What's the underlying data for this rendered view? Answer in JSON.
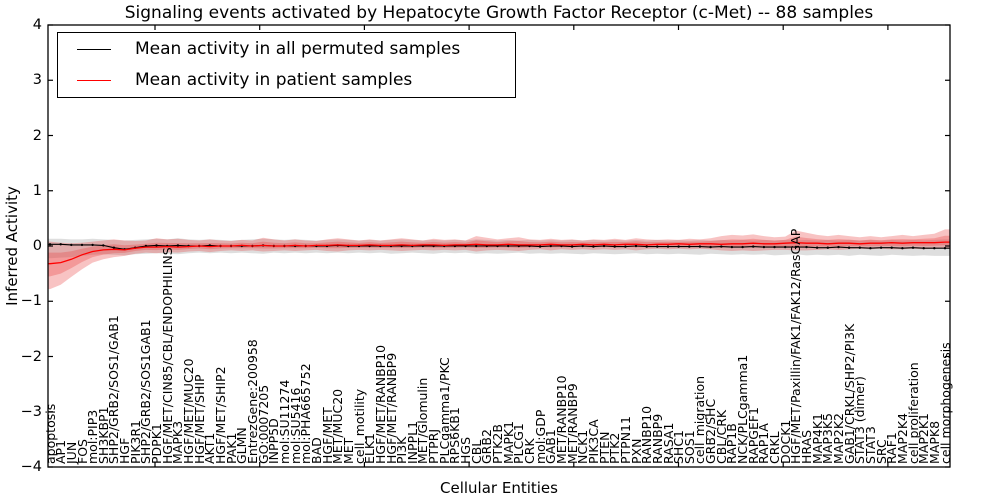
{
  "title": "Signaling events activated by Hepatocyte Growth Factor Receptor (c-Met) -- 88 samples",
  "legend": {
    "items": [
      {
        "label": "Mean activity in all permuted samples",
        "color": "#000000"
      },
      {
        "label": "Mean activity in patient samples",
        "color": "#ff0000"
      }
    ]
  },
  "axes": {
    "ylabel": "Inferred Activity",
    "xlabel": "Cellular Entities",
    "yticks": [
      "4",
      "3",
      "2",
      "1",
      "0",
      "−1",
      "−2",
      "−3",
      "−4"
    ],
    "ytick_values": [
      4,
      3,
      2,
      1,
      0,
      -1,
      -2,
      -3,
      -4
    ]
  },
  "chart_data": {
    "type": "line",
    "title": "Signaling events activated by Hepatocyte Growth Factor Receptor (c-Met) -- 88 samples",
    "xlabel": "Cellular Entities",
    "ylabel": "Inferred Activity",
    "ylim": [
      -4,
      4
    ],
    "grid": false,
    "legend_position": "upper left",
    "categories": [
      "apoptosis",
      "AP1",
      "JUN",
      "FOS",
      "mol:PIP3",
      "SH3KBP1",
      "SHP2/GRB2/SOS1/GAB1",
      "HGF",
      "PIK3R1",
      "SHP2/GRB2/SOS1GAB1",
      "PDPK1",
      "HGF/MET/CIN85/CBL/ENDOPHILINS",
      "MAPK3",
      "HGF/MET/MUC20",
      "HGF/MET/SHIP",
      "AKT1",
      "HGF/MET/SHIP2",
      "PAK1",
      "GLMN",
      "EntrezGene:200958",
      "GO:0007205",
      "INPP5D",
      "mol:SU11274",
      "mol:SU5416",
      "mol:PHA665752",
      "BAD",
      "HGF/MET",
      "MET/MUC20",
      "MET",
      "cell_motility",
      "ELK1",
      "HGF/MET/RANBP10",
      "HGF/MET/RANBP9",
      "PI3K",
      "INPPL1",
      "MET/Glomulin",
      "PTPRJ",
      "PLCgamma1/PKC",
      "RPS6KB1",
      "HGS",
      "CBL",
      "GRB2",
      "PTK2B",
      "MAPK1",
      "PLCG1",
      "CRK",
      "mol:GDP",
      "GAB1",
      "MET/RANBP10",
      "MET/RANBP9",
      "NCK1",
      "PIK3CA",
      "PTEN",
      "PTK2",
      "PTPN11",
      "PXN",
      "RANBP10",
      "RANBP9",
      "RASA1",
      "SHC1",
      "SOS1",
      "cell_migration",
      "GRB2/SHC",
      "CBL/CRK",
      "RAP1B",
      "NCK/PLCgamma1",
      "RAPGEF1",
      "RAP1A",
      "CRKL",
      "DOCK1",
      "HGF/MET/Paxillin/FAK1/FAK12/RasGAP",
      "HRAS",
      "MAP4K1",
      "MAP3K5",
      "MAP2K2",
      "GAB1/CRKL/SHP2/PI3K",
      "STAT3 (dimer)",
      "STAT3",
      "SRC",
      "RAF1",
      "MAP2K4",
      "cell proliferation",
      "MAP2K1",
      "MAPK8",
      "cell morphogenesis"
    ],
    "series": [
      {
        "name": "Mean activity in all permuted samples",
        "color": "#000000",
        "band_color": "rgba(0,0,0,0.13)",
        "values": [
          0.03,
          0.03,
          0.02,
          0.02,
          0.02,
          0.01,
          -0.03,
          -0.06,
          -0.03,
          0.0,
          0.01,
          0.0,
          0.01,
          0.0,
          0.0,
          0.01,
          0.0,
          0.0,
          0.0,
          0.0,
          0.01,
          0.0,
          0.0,
          0.0,
          0.0,
          0.0,
          0.0,
          0.01,
          0.0,
          0.0,
          0.0,
          0.0,
          0.0,
          0.0,
          0.0,
          0.0,
          0.0,
          0.0,
          0.0,
          0.0,
          0.0,
          0.0,
          0.0,
          0.0,
          0.0,
          0.0,
          -0.01,
          0.0,
          0.0,
          -0.01,
          0.0,
          -0.01,
          0.0,
          -0.01,
          -0.01,
          0.0,
          -0.01,
          -0.01,
          -0.01,
          -0.01,
          -0.01,
          -0.01,
          -0.02,
          -0.01,
          -0.02,
          -0.02,
          -0.01,
          -0.02,
          -0.02,
          -0.02,
          -0.02,
          -0.02,
          -0.03,
          -0.03,
          -0.02,
          -0.03,
          -0.03,
          -0.04,
          -0.03,
          -0.03,
          -0.04,
          -0.03,
          -0.04,
          -0.04,
          -0.04
        ],
        "band_upper": [
          0.13,
          0.13,
          0.12,
          0.12,
          0.13,
          0.12,
          0.11,
          0.1,
          0.11,
          0.12,
          0.13,
          0.12,
          0.14,
          0.12,
          0.11,
          0.12,
          0.11,
          0.1,
          0.11,
          0.12,
          0.13,
          0.12,
          0.11,
          0.12,
          0.11,
          0.1,
          0.11,
          0.12,
          0.11,
          0.1,
          0.11,
          0.1,
          0.11,
          0.12,
          0.11,
          0.1,
          0.11,
          0.1,
          0.11,
          0.1,
          0.12,
          0.11,
          0.1,
          0.11,
          0.1,
          0.11,
          0.1,
          0.11,
          0.1,
          0.11,
          0.1,
          0.11,
          0.1,
          0.11,
          0.1,
          0.11,
          0.1,
          0.11,
          0.1,
          0.11,
          0.1,
          0.11,
          0.1,
          0.11,
          0.1,
          0.11,
          0.1,
          0.11,
          0.1,
          0.11,
          0.1,
          0.11,
          0.1,
          0.11,
          0.1,
          0.11,
          0.1,
          0.11,
          0.1,
          0.11,
          0.1,
          0.11,
          0.1,
          0.11,
          0.12
        ],
        "band_lower": [
          -0.22,
          -0.21,
          -0.2,
          -0.18,
          -0.16,
          -0.15,
          -0.16,
          -0.17,
          -0.15,
          -0.14,
          -0.13,
          -0.14,
          -0.15,
          -0.13,
          -0.12,
          -0.13,
          -0.12,
          -0.13,
          -0.12,
          -0.13,
          -0.14,
          -0.12,
          -0.13,
          -0.12,
          -0.13,
          -0.12,
          -0.13,
          -0.12,
          -0.13,
          -0.12,
          -0.13,
          -0.12,
          -0.14,
          -0.13,
          -0.12,
          -0.13,
          -0.14,
          -0.12,
          -0.13,
          -0.12,
          -0.14,
          -0.13,
          -0.14,
          -0.13,
          -0.12,
          -0.14,
          -0.13,
          -0.14,
          -0.13,
          -0.14,
          -0.15,
          -0.13,
          -0.14,
          -0.15,
          -0.14,
          -0.13,
          -0.15,
          -0.14,
          -0.15,
          -0.14,
          -0.15,
          -0.16,
          -0.14,
          -0.15,
          -0.16,
          -0.15,
          -0.16,
          -0.15,
          -0.17,
          -0.16,
          -0.15,
          -0.17,
          -0.16,
          -0.17,
          -0.16,
          -0.18,
          -0.16,
          -0.17,
          -0.18,
          -0.16,
          -0.17,
          -0.18,
          -0.17,
          -0.18,
          -0.18
        ]
      },
      {
        "name": "Mean activity in patient samples",
        "color": "#ff0000",
        "band_color": "rgba(231,56,56,0.30)",
        "values": [
          -0.32,
          -0.3,
          -0.24,
          -0.16,
          -0.1,
          -0.07,
          -0.06,
          -0.07,
          -0.04,
          -0.02,
          -0.02,
          -0.01,
          -0.02,
          -0.01,
          0.0,
          -0.01,
          0.0,
          0.0,
          0.01,
          0.0,
          0.01,
          0.0,
          0.0,
          0.01,
          0.0,
          0.01,
          0.01,
          0.02,
          0.01,
          0.01,
          0.02,
          0.01,
          0.01,
          0.02,
          0.01,
          0.02,
          0.02,
          0.01,
          0.02,
          0.02,
          0.03,
          0.02,
          0.02,
          0.03,
          0.02,
          0.02,
          0.02,
          0.03,
          0.02,
          0.02,
          0.03,
          0.02,
          0.03,
          0.02,
          0.03,
          0.03,
          0.02,
          0.03,
          0.03,
          0.04,
          0.03,
          0.04,
          0.04,
          0.03,
          0.04,
          0.04,
          0.05,
          0.04,
          0.04,
          0.05,
          0.06,
          0.05,
          0.05,
          0.04,
          0.05,
          0.05,
          0.04,
          0.05,
          0.05,
          0.06,
          0.05,
          0.06,
          0.06,
          0.06,
          0.07
        ],
        "band_upper": [
          0.08,
          0.06,
          0.05,
          0.06,
          0.08,
          0.1,
          0.12,
          0.1,
          0.09,
          0.1,
          0.14,
          0.12,
          0.13,
          0.11,
          0.1,
          0.12,
          0.1,
          0.09,
          0.11,
          0.1,
          0.15,
          0.12,
          0.1,
          0.12,
          0.1,
          0.09,
          0.12,
          0.14,
          0.12,
          0.1,
          0.12,
          0.1,
          0.12,
          0.14,
          0.12,
          0.1,
          0.13,
          0.11,
          0.12,
          0.1,
          0.18,
          0.15,
          0.12,
          0.14,
          0.16,
          0.12,
          0.11,
          0.13,
          0.11,
          0.12,
          0.1,
          0.12,
          0.11,
          0.13,
          0.11,
          0.14,
          0.12,
          0.11,
          0.12,
          0.11,
          0.13,
          0.12,
          0.14,
          0.18,
          0.2,
          0.19,
          0.21,
          0.18,
          0.16,
          0.17,
          0.28,
          0.24,
          0.2,
          0.18,
          0.2,
          0.18,
          0.16,
          0.18,
          0.16,
          0.18,
          0.2,
          0.18,
          0.2,
          0.22,
          0.3
        ],
        "band_lower": [
          -0.78,
          -0.7,
          -0.56,
          -0.42,
          -0.3,
          -0.24,
          -0.2,
          -0.18,
          -0.14,
          -0.12,
          -0.13,
          -0.11,
          -0.12,
          -0.1,
          -0.09,
          -0.11,
          -0.09,
          -0.08,
          -0.09,
          -0.08,
          -0.1,
          -0.09,
          -0.08,
          -0.09,
          -0.08,
          -0.07,
          -0.09,
          -0.1,
          -0.08,
          -0.07,
          -0.08,
          -0.07,
          -0.08,
          -0.09,
          -0.08,
          -0.07,
          -0.08,
          -0.07,
          -0.08,
          -0.07,
          -0.1,
          -0.08,
          -0.07,
          -0.08,
          -0.09,
          -0.07,
          -0.06,
          -0.08,
          -0.06,
          -0.07,
          -0.06,
          -0.07,
          -0.06,
          -0.07,
          -0.06,
          -0.08,
          -0.06,
          -0.05,
          -0.06,
          -0.05,
          -0.06,
          -0.05,
          -0.06,
          -0.08,
          -0.09,
          -0.08,
          -0.09,
          -0.08,
          -0.07,
          -0.07,
          -0.08,
          -0.08,
          -0.07,
          -0.06,
          -0.07,
          -0.06,
          -0.05,
          -0.06,
          -0.05,
          -0.06,
          -0.06,
          -0.05,
          -0.06,
          -0.05,
          -0.04
        ]
      }
    ]
  }
}
